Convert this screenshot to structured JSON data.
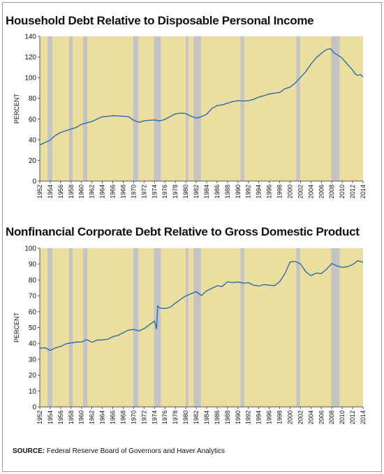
{
  "chart_data": [
    {
      "type": "line",
      "title": "Household Debt Relative to Disposable Personal Income",
      "ylabel": "PERCENT",
      "xlabel": "",
      "ylim": [
        0,
        140
      ],
      "yticks": [
        0,
        20,
        40,
        60,
        80,
        100,
        120,
        140
      ],
      "xlim": [
        1952,
        2014
      ],
      "xticks": [
        1952,
        1954,
        1956,
        1958,
        1960,
        1962,
        1964,
        1966,
        1968,
        1970,
        1972,
        1974,
        1976,
        1978,
        1980,
        1982,
        1984,
        1986,
        1988,
        1990,
        1992,
        1994,
        1996,
        1998,
        2000,
        2002,
        2004,
        2006,
        2008,
        2010,
        2012,
        2014
      ],
      "grid": false,
      "plot_background": "#ecdda0",
      "line_color": "#2b6ea6",
      "recession_color": "#c4c4c4",
      "recessions": [
        [
          1953.5,
          1954.4
        ],
        [
          1957.6,
          1958.3
        ],
        [
          1960.3,
          1961.1
        ],
        [
          1969.9,
          1970.9
        ],
        [
          1973.9,
          1975.2
        ],
        [
          1980.0,
          1980.5
        ],
        [
          1981.5,
          1982.9
        ],
        [
          1990.5,
          1991.2
        ],
        [
          2001.2,
          2001.9
        ],
        [
          2007.9,
          2009.5
        ]
      ],
      "series": [
        {
          "x": [
            1952,
            1953,
            1954,
            1955,
            1956,
            1957,
            1958,
            1959,
            1960,
            1961,
            1962,
            1963,
            1964,
            1965,
            1966,
            1967,
            1968,
            1969,
            1970,
            1971,
            1972,
            1973,
            1974,
            1975,
            1976,
            1977,
            1978,
            1979,
            1980,
            1981,
            1982,
            1983,
            1984,
            1985,
            1986,
            1987,
            1988,
            1989,
            1990,
            1991,
            1992,
            1993,
            1994,
            1995,
            1996,
            1997,
            1998,
            1999,
            2000,
            2001,
            2002,
            2003,
            2004,
            2005,
            2006,
            2007,
            2007.8,
            2008.5,
            2009,
            2010,
            2011,
            2012,
            2012.5,
            2013,
            2013.5,
            2014
          ],
          "y": [
            35,
            37,
            40,
            44,
            47,
            49,
            50,
            52,
            55,
            56,
            58,
            60,
            62,
            63,
            63,
            63,
            63,
            62,
            59,
            57,
            58,
            59,
            59,
            58,
            60,
            62,
            65,
            66,
            65,
            63,
            61,
            62,
            65,
            70,
            73,
            74,
            75,
            77,
            78,
            77,
            78,
            79,
            81,
            83,
            84,
            85,
            86,
            89,
            91,
            95,
            100,
            106,
            113,
            119,
            124,
            127,
            128,
            124,
            122,
            119,
            113,
            107,
            104,
            102,
            103,
            101
          ]
        }
      ]
    },
    {
      "type": "line",
      "title": "Nonfinancial Corporate Debt Relative to Gross Domestic Product",
      "ylabel": "PERCENT",
      "xlabel": "",
      "ylim": [
        0,
        100
      ],
      "yticks": [
        0,
        10,
        20,
        30,
        40,
        50,
        60,
        70,
        80,
        90,
        100
      ],
      "xlim": [
        1952,
        2014
      ],
      "xticks": [
        1952,
        1954,
        1956,
        1958,
        1960,
        1962,
        1964,
        1966,
        1968,
        1970,
        1972,
        1974,
        1976,
        1978,
        1980,
        1982,
        1984,
        1986,
        1988,
        1990,
        1992,
        1994,
        1996,
        1998,
        2000,
        2002,
        2004,
        2006,
        2008,
        2010,
        2012,
        2014
      ],
      "grid": false,
      "plot_background": "#ecdda0",
      "line_color": "#2b6ea6",
      "recession_color": "#c4c4c4",
      "recessions": [
        [
          1953.5,
          1954.4
        ],
        [
          1957.6,
          1958.3
        ],
        [
          1960.3,
          1961.1
        ],
        [
          1969.9,
          1970.9
        ],
        [
          1973.9,
          1975.2
        ],
        [
          1980.0,
          1980.5
        ],
        [
          1981.5,
          1982.9
        ],
        [
          1990.5,
          1991.2
        ],
        [
          2001.2,
          2001.9
        ],
        [
          2007.9,
          2009.5
        ]
      ],
      "series": [
        {
          "x": [
            1952,
            1953,
            1954,
            1955,
            1956,
            1957,
            1958,
            1959,
            1960,
            1961,
            1962,
            1963,
            1964,
            1965,
            1966,
            1967,
            1968,
            1969,
            1970,
            1971,
            1972,
            1973,
            1974,
            1974.4,
            1974.6,
            1975,
            1976,
            1977,
            1978,
            1979,
            1980,
            1981,
            1982,
            1983,
            1984,
            1985,
            1986,
            1987,
            1988,
            1989,
            1990,
            1991,
            1992,
            1993,
            1994,
            1995,
            1996,
            1997,
            1998,
            1999,
            2000,
            2001,
            2002,
            2003,
            2004,
            2005,
            2006,
            2007,
            2008,
            2009,
            2010,
            2011,
            2012,
            2013,
            2014
          ],
          "y": [
            37,
            37,
            36,
            37,
            38,
            40,
            40,
            41,
            41,
            42,
            41,
            42,
            42,
            43,
            44,
            45,
            47,
            48,
            49,
            48,
            49,
            52,
            54,
            49,
            64,
            62,
            62,
            63,
            65,
            68,
            70,
            71,
            73,
            70,
            73,
            75,
            76,
            76,
            79,
            78,
            79,
            78,
            78,
            77,
            76,
            77,
            77,
            76,
            79,
            84,
            91,
            92,
            90,
            85,
            83,
            84,
            84,
            87,
            90,
            89,
            88,
            88,
            90,
            92,
            91
          ]
        }
      ]
    }
  ],
  "source": {
    "label": "SOURCE:",
    "text": " Federal Reserve Board of Governors and Haver Analytics"
  }
}
